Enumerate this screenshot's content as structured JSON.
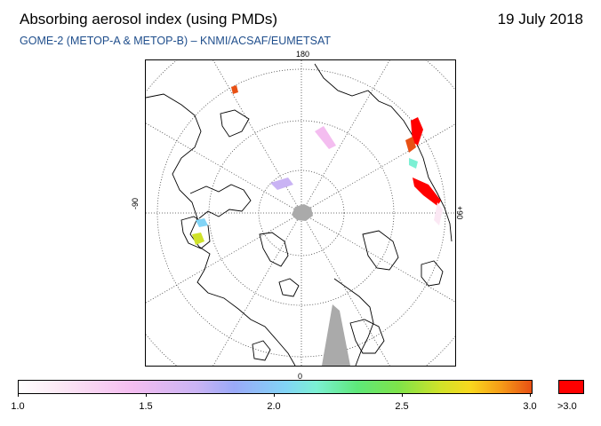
{
  "title": "Absorbing aerosol index (using PMDs)",
  "date": "19 July 2018",
  "subtitle": "GOME-2 (METOP-A & METOP-B)  –  KNMI/ACSAF/EUMETSAT",
  "map": {
    "projection": "polar-stereographic-north",
    "lon_labels": {
      "top": "180",
      "bottom": "0",
      "left": "-90",
      "right": "+90"
    },
    "colors": {
      "land_outline": "#000000",
      "graticule": "#444444",
      "no_data": "#aaaaaa"
    }
  },
  "colorbar": {
    "tick_labels": [
      "1.0",
      "1.5",
      "2.0",
      "2.5",
      "3.0"
    ],
    "range": [
      1.0,
      3.0
    ],
    "over_label": ">3.0",
    "over_color": "#ff0000"
  }
}
